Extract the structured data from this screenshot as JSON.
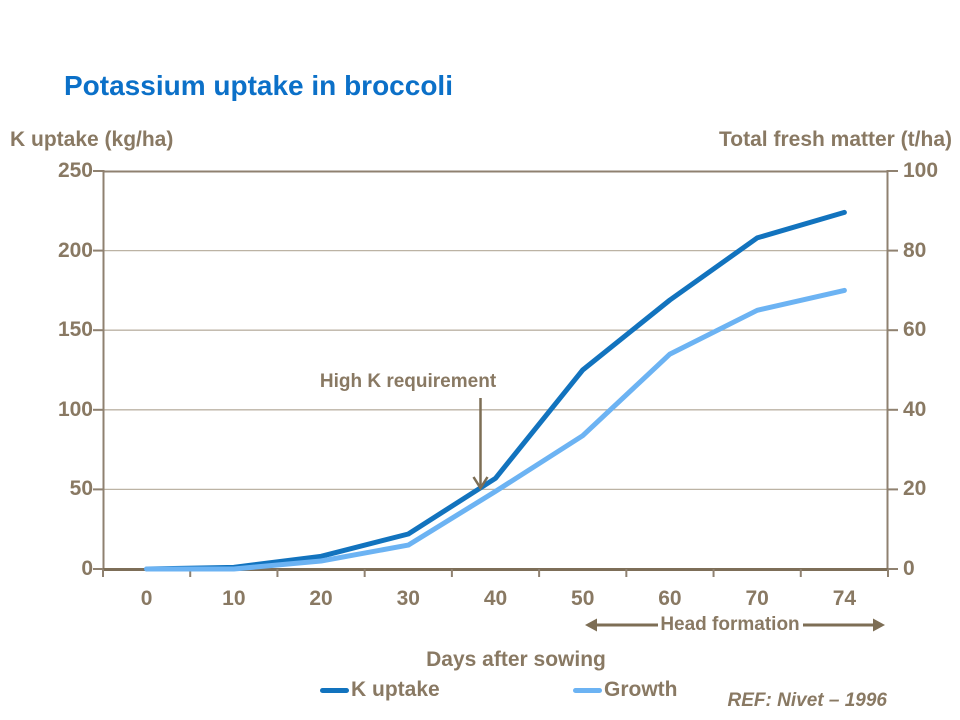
{
  "colors": {
    "title_blue": "#0b70c8",
    "text_brown": "#897963",
    "axis_brown": "#8f8170",
    "axis_bottom_brown": "#7d6e58",
    "gridline": "#bcb3a4",
    "arrow_brown": "#7d6e55",
    "k_uptake_line": "#1273be",
    "growth_line": "#6cb3f3"
  },
  "chart_data": {
    "type": "line",
    "title": "Potassium uptake in broccoli",
    "xlabel": "Days after sowing",
    "x_categories": [
      "0",
      "10",
      "20",
      "30",
      "40",
      "50",
      "60",
      "70",
      "74"
    ],
    "left_axis": {
      "label": "K uptake (kg/ha)",
      "range": [
        0,
        250
      ],
      "ticks": [
        "250",
        "200",
        "150",
        "100",
        "50",
        "0"
      ]
    },
    "right_axis": {
      "label": "Total fresh matter (t/ha)",
      "range": [
        0,
        100
      ],
      "ticks": [
        "100",
        "80",
        "60",
        "40",
        "20",
        "0"
      ]
    },
    "grid": "horizontal",
    "legend_position": "bottom",
    "series": [
      {
        "name": "K uptake",
        "axis": "left",
        "color": "#1273be",
        "values": [
          0,
          1,
          8,
          22,
          57,
          125,
          169,
          208,
          224
        ]
      },
      {
        "name": "Growth",
        "axis": "right",
        "color": "#6cb3f3",
        "values": [
          0,
          0,
          2,
          6,
          19.5,
          33.5,
          54,
          65,
          70
        ]
      }
    ],
    "annotations": {
      "high_k": "High K requirement",
      "head_formation": "Head formation",
      "ref": "REF: Nivet – 1996"
    }
  }
}
